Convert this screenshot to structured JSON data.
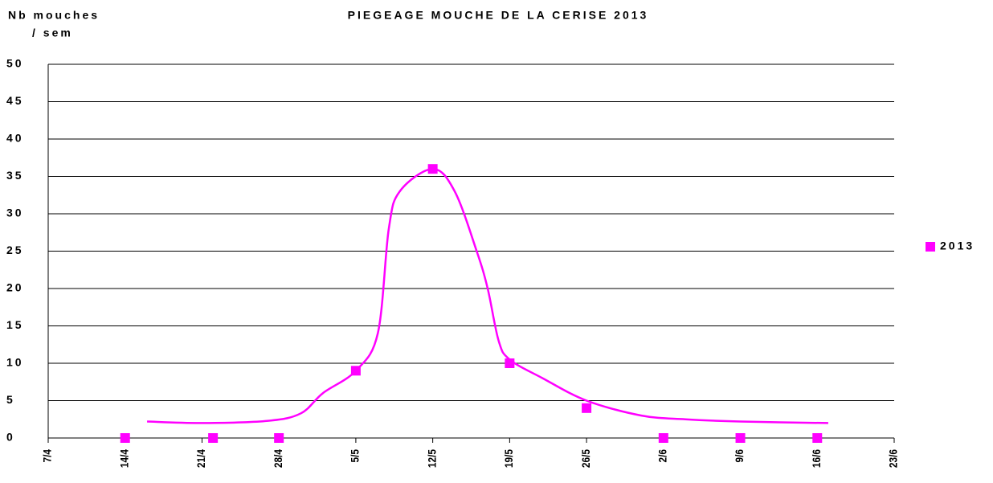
{
  "chart_data": {
    "type": "scatter",
    "title": "PIEGEAGE MOUCHE DE LA CERISE 2013",
    "y_label": [
      "Nb mouches",
      "/ sem"
    ],
    "xlim": [
      "7/4",
      "23/6"
    ],
    "xticks": [
      "7/4",
      "14/4",
      "21/4",
      "28/4",
      "5/5",
      "12/5",
      "19/5",
      "26/5",
      "2/6",
      "9/6",
      "16/6",
      "23/6"
    ],
    "ylim": [
      0,
      50
    ],
    "yticks": [
      0,
      5,
      10,
      15,
      20,
      25,
      30,
      35,
      40,
      45,
      50
    ],
    "grid": true,
    "legend": "right",
    "series": [
      {
        "name": "2013",
        "color": "#ff00ff",
        "x": [
          "14/4",
          "22/4",
          "28/4",
          "5/5",
          "12/5",
          "19/5",
          "26/5",
          "2/6",
          "9/6",
          "16/6"
        ],
        "values": [
          0,
          0,
          0,
          9,
          36,
          10,
          4,
          0,
          0,
          0
        ]
      },
      {
        "color": "#ff00ff",
        "line": true,
        "x": [
          "16/4",
          "21/4",
          "27/4",
          "30/4",
          "2/5",
          "5/5",
          "7/5",
          "8/5",
          "9/5",
          "12/5",
          "14/5",
          "16/5",
          "17/5",
          "18/5",
          "19/5",
          "22/5",
          "26/5",
          "31/5",
          "4/6",
          "9/6",
          "17/6"
        ],
        "values": [
          2.2,
          2,
          2.3,
          3.3,
          6,
          9,
          14,
          28,
          33,
          36,
          33,
          25,
          20,
          13,
          10.5,
          8,
          5,
          3,
          2.5,
          2.2,
          2
        ]
      }
    ]
  }
}
